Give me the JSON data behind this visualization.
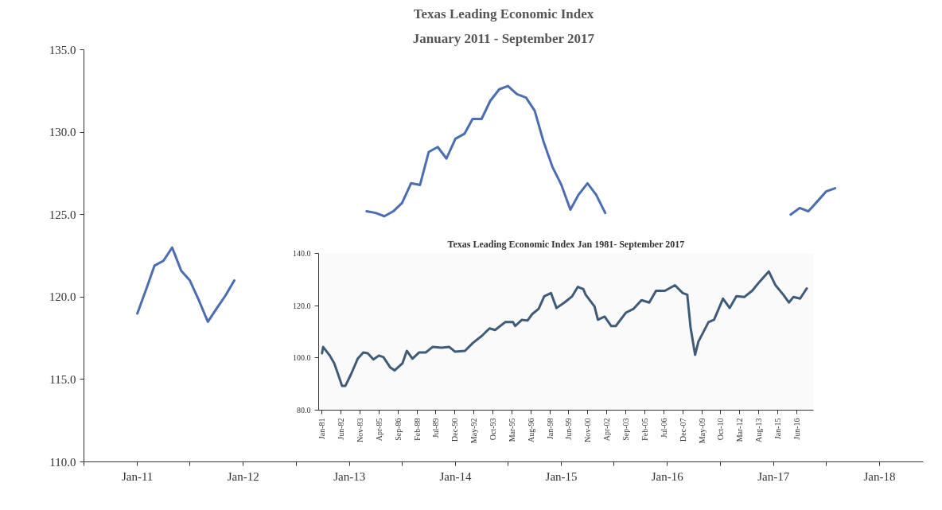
{
  "chart_data": [
    {
      "type": "line",
      "title": "Texas Leading Economic Index",
      "subtitle": "January 2011 - September 2017",
      "xlim": [
        "2010-07",
        "2018-06"
      ],
      "xticks": [
        {
          "value": "2010-07",
          "label": null
        },
        {
          "value": "2011-01",
          "label": "Jan-11"
        },
        {
          "value": "2011-07",
          "label": null
        },
        {
          "value": "2012-01",
          "label": "Jan-12"
        },
        {
          "value": "2012-07",
          "label": null
        },
        {
          "value": "2013-01",
          "label": "Jan-13"
        },
        {
          "value": "2013-07",
          "label": null
        },
        {
          "value": "2014-01",
          "label": "Jan-14"
        },
        {
          "value": "2014-07",
          "label": null
        },
        {
          "value": "2015-01",
          "label": "Jan-15"
        },
        {
          "value": "2015-07",
          "label": null
        },
        {
          "value": "2016-01",
          "label": "Jan-16"
        },
        {
          "value": "2016-07",
          "label": null
        },
        {
          "value": "2017-01",
          "label": "Jan-17"
        },
        {
          "value": "2017-07",
          "label": null
        },
        {
          "value": "2018-01",
          "label": "Jan-18"
        }
      ],
      "ylim": [
        110,
        135
      ],
      "yticks": [
        {
          "value": 110,
          "label": "110.0"
        },
        {
          "value": 115,
          "label": "115.0"
        },
        {
          "value": 120,
          "label": "120.0"
        },
        {
          "value": 125,
          "label": "125.0"
        },
        {
          "value": 130,
          "label": "130.0"
        },
        {
          "value": 135,
          "label": "135.0"
        }
      ],
      "series": [
        {
          "color": "#4a6db3",
          "x": [
            "2011-01",
            "2011-02",
            "2011-03",
            "2011-04",
            "2011-05",
            "2011-06",
            "2011-07",
            "2011-08",
            "2011-09",
            "2011-10",
            "2011-11",
            "2011-12",
            "2012-06",
            "2013-03",
            "2013-04",
            "2013-05",
            "2013-06",
            "2013-07",
            "2013-08",
            "2013-09",
            "2013-10",
            "2013-11",
            "2013-12",
            "2014-01",
            "2014-02",
            "2014-03",
            "2014-04",
            "2014-05",
            "2014-06",
            "2014-07",
            "2014-08",
            "2014-09",
            "2014-10",
            "2014-11",
            "2014-12",
            "2015-01",
            "2015-02",
            "2015-03",
            "2015-04",
            "2015-05",
            "2015-06",
            "2016-06",
            "2017-03",
            "2017-04",
            "2017-05",
            "2017-06",
            "2017-07",
            "2017-08"
          ],
          "values": [
            119.0,
            120.5,
            121.9,
            122.2,
            123.0,
            121.6,
            121.0,
            119.8,
            118.5,
            119.3,
            120.1,
            121.0,
            null,
            125.2,
            125.1,
            124.9,
            125.2,
            125.7,
            126.9,
            126.8,
            128.8,
            129.1,
            128.4,
            129.6,
            129.9,
            130.8,
            130.8,
            131.9,
            132.6,
            132.8,
            132.3,
            132.1,
            131.3,
            129.4,
            127.9,
            126.8,
            125.3,
            126.2,
            126.9,
            126.2,
            125.1,
            null,
            125.0,
            125.4,
            125.2,
            125.8,
            126.4,
            126.6
          ]
        }
      ]
    },
    {
      "type": "line",
      "title": "Texas Leading Economic Index Jan 1981- September 2017",
      "xlim": [
        "1980-10",
        "2017-09"
      ],
      "xticks": [
        {
          "value": "1981-01",
          "label": "Jan-81"
        },
        {
          "value": "1982-06",
          "label": "Jun-82"
        },
        {
          "value": "1983-11",
          "label": "Nov-83"
        },
        {
          "value": "1985-04",
          "label": "Apr-85"
        },
        {
          "value": "1986-09",
          "label": "Sep-86"
        },
        {
          "value": "1988-02",
          "label": "Feb-88"
        },
        {
          "value": "1989-07",
          "label": "Jul-89"
        },
        {
          "value": "1990-12",
          "label": "Dec-90"
        },
        {
          "value": "1992-05",
          "label": "May-92"
        },
        {
          "value": "1993-10",
          "label": "Oct-93"
        },
        {
          "value": "1995-03",
          "label": "Mar-95"
        },
        {
          "value": "1996-08",
          "label": "Aug-96"
        },
        {
          "value": "1998-01",
          "label": "Jan-98"
        },
        {
          "value": "1999-06",
          "label": "Jun-99"
        },
        {
          "value": "2000-11",
          "label": "Nov-00"
        },
        {
          "value": "2002-04",
          "label": "Apr-02"
        },
        {
          "value": "2003-09",
          "label": "Sep-03"
        },
        {
          "value": "2005-02",
          "label": "Feb-05"
        },
        {
          "value": "2006-07",
          "label": "Jul-06"
        },
        {
          "value": "2007-12",
          "label": "Dec-07"
        },
        {
          "value": "2009-05",
          "label": "May-09"
        },
        {
          "value": "2010-10",
          "label": "Oct-10"
        },
        {
          "value": "2012-03",
          "label": "Mar-12"
        },
        {
          "value": "2013-08",
          "label": "Aug-13"
        },
        {
          "value": "2015-01",
          "label": "Jan-15"
        },
        {
          "value": "2016-06",
          "label": "Jun-16"
        }
      ],
      "ylim": [
        80,
        140
      ],
      "yticks": [
        {
          "value": 80,
          "label": "80.0"
        },
        {
          "value": 100,
          "label": "100.0"
        },
        {
          "value": 120,
          "label": "120.0"
        },
        {
          "value": 140,
          "label": "140.0"
        }
      ],
      "series": [
        {
          "color": "#3e5b7a",
          "x": [
            "1981-01",
            "1981-02",
            "1981-08",
            "1981-12",
            "1982-03",
            "1982-07",
            "1982-10",
            "1983-03",
            "1983-09",
            "1984-02",
            "1984-06",
            "1984-11",
            "1985-04",
            "1985-08",
            "1986-02",
            "1986-06",
            "1987-01",
            "1987-05",
            "1987-10",
            "1988-04",
            "1988-10",
            "1989-04",
            "1989-12",
            "1990-07",
            "1990-12",
            "1991-09",
            "1992-04",
            "1992-12",
            "1993-07",
            "1993-12",
            "1994-09",
            "1995-04",
            "1995-06",
            "1995-12",
            "1996-05",
            "1996-09",
            "1997-03",
            "1997-08",
            "1998-02",
            "1998-07",
            "1999-02",
            "1999-09",
            "2000-02",
            "2000-07",
            "2000-09",
            "2001-05",
            "2001-08",
            "2002-02",
            "2002-08",
            "2002-12",
            "2003-09",
            "2004-04",
            "2004-11",
            "2005-06",
            "2005-12",
            "2006-08",
            "2007-05",
            "2007-12",
            "2008-04",
            "2008-07",
            "2008-11",
            "2009-02",
            "2009-11",
            "2010-04",
            "2010-12",
            "2011-06",
            "2011-12",
            "2012-07",
            "2013-02",
            "2013-09",
            "2014-05",
            "2014-11",
            "2015-06",
            "2015-11",
            "2016-03",
            "2016-09",
            "2017-03"
          ],
          "values": [
            101.8,
            104.2,
            100.9,
            97.9,
            94.3,
            89.3,
            89.3,
            93.7,
            99.7,
            102.1,
            101.8,
            99.4,
            100.9,
            100.3,
            96.4,
            95.2,
            97.9,
            102.7,
            99.7,
            102.1,
            102.1,
            104.2,
            103.9,
            104.2,
            102.4,
            102.7,
            105.7,
            108.4,
            111.3,
            110.7,
            113.7,
            113.7,
            112.2,
            114.6,
            114.3,
            116.7,
            118.8,
            123.6,
            124.8,
            119.1,
            121.2,
            123.6,
            127.2,
            126.3,
            124.2,
            119.7,
            114.6,
            115.8,
            112.2,
            112.2,
            117.3,
            118.8,
            122.1,
            121.2,
            125.7,
            125.7,
            127.8,
            124.8,
            124.2,
            111.6,
            101.2,
            106.3,
            113.7,
            114.6,
            122.7,
            119.1,
            123.6,
            123.3,
            125.7,
            129.3,
            133.1,
            127.8,
            124.2,
            121.2,
            123.3,
            122.7,
            126.6
          ]
        }
      ]
    }
  ]
}
